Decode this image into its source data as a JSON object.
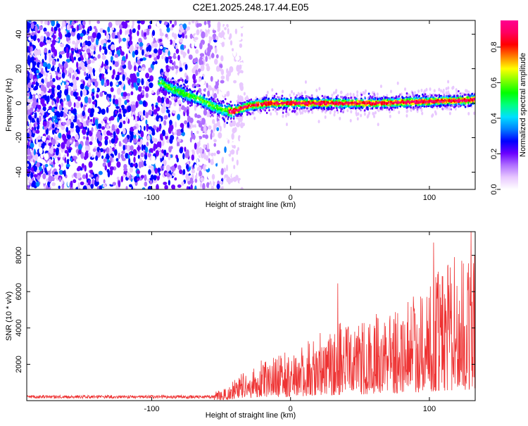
{
  "title": "C2E1.2025.248.17.44.E05",
  "chart_data": [
    {
      "type": "heatmap",
      "title": "C2E1.2025.248.17.44.E05",
      "xlabel": "Height of straight line (km)",
      "ylabel": "Frequency (Hz)",
      "xlim": [
        -190,
        133
      ],
      "ylim": [
        -50,
        48
      ],
      "xticks": [
        -100,
        0,
        100
      ],
      "xtick_labels": [
        "-100",
        "0",
        "100"
      ],
      "yticks": [
        -40,
        -20,
        0,
        20,
        40
      ],
      "ytick_labels": [
        "-40",
        "-20",
        "0",
        "20",
        "40"
      ],
      "colorbar": {
        "label": "Normalized spectral amplitude",
        "range": [
          0,
          0.95
        ],
        "ticks": [
          0.0,
          0.2,
          0.4,
          0.6,
          0.8
        ],
        "tick_labels": [
          "0.0",
          "0.2",
          "0.4",
          "0.6",
          "0.8"
        ],
        "colors": [
          "#ffffff",
          "#e8c8ff",
          "#b070ff",
          "#6a00ff",
          "#0000ff",
          "#0080ff",
          "#00e0ff",
          "#00ff80",
          "#00ff00",
          "#80ff00",
          "#ffff00",
          "#ff8000",
          "#ff0000",
          "#ff0060",
          "#ff0090"
        ]
      },
      "ridge": {
        "description_points_x": [
          -93,
          -85,
          -75,
          -65,
          -55,
          -48,
          -42,
          -38,
          -32,
          -25,
          -15,
          0,
          20,
          40,
          60,
          80,
          100,
          120,
          133
        ],
        "description_points_y": [
          12,
          8,
          5,
          2,
          -2,
          -4,
          -5,
          -4,
          -2,
          -1,
          0,
          0,
          0,
          0,
          0,
          0.5,
          1,
          1.5,
          2
        ]
      }
    },
    {
      "type": "line",
      "xlabel": "Height of straight line (km)",
      "ylabel": "SNR (10 * v/v)",
      "xlim": [
        -190,
        133
      ],
      "ylim": [
        0,
        9300
      ],
      "xticks": [
        -100,
        0,
        100
      ],
      "xtick_labels": [
        "-100",
        "0",
        "100"
      ],
      "yticks": [
        2000,
        4000,
        6000,
        8000
      ],
      "ytick_labels": [
        "2000",
        "4000",
        "6000",
        "8000"
      ],
      "color": "#ee3333",
      "envelope_x": [
        -190,
        -140,
        -90,
        -60,
        -45,
        -35,
        -25,
        -10,
        0,
        10,
        20,
        30,
        40,
        50,
        60,
        70,
        80,
        90,
        100,
        110,
        120,
        133
      ],
      "envelope_y": [
        250,
        250,
        250,
        300,
        700,
        1500,
        2000,
        2300,
        2600,
        3000,
        3400,
        3800,
        4200,
        4300,
        4400,
        4700,
        5200,
        5600,
        6200,
        6800,
        7300,
        7600
      ],
      "peaks": [
        {
          "x": 34,
          "y": 6450
        },
        {
          "x": 103,
          "y": 8700
        },
        {
          "x": 118,
          "y": 7900
        },
        {
          "x": 130,
          "y": 9300
        }
      ]
    }
  ]
}
